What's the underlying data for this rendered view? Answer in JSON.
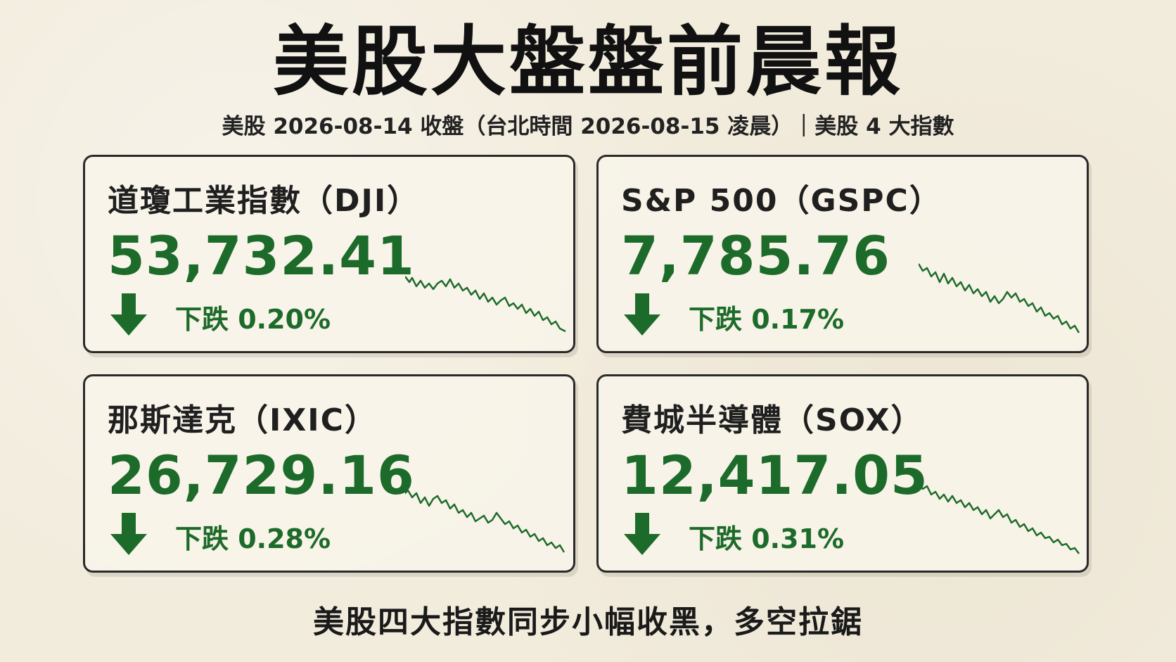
{
  "title": "美股大盤盤前晨報",
  "subtitle": "美股 2026-08-14 收盤（台北時間 2026-08-15 凌晨）｜美股 4 大指數",
  "colors": {
    "down": "#1d6b2a",
    "background": "#f2ecdd",
    "border": "#2a2a2a"
  },
  "cards": [
    {
      "name": "道瓊工業指數（DJI）",
      "value": "53,732.41",
      "change": "下跌 0.20%",
      "direction": "down",
      "arrow_icon": "down-arrow-icon"
    },
    {
      "name": "S&P 500（GSPC）",
      "value": "7,785.76",
      "change": "下跌 0.17%",
      "direction": "down",
      "arrow_icon": "down-arrow-icon"
    },
    {
      "name": "那斯達克（IXIC）",
      "value": "26,729.16",
      "change": "下跌 0.28%",
      "direction": "down",
      "arrow_icon": "down-arrow-icon"
    },
    {
      "name": "費城半導體（SOX）",
      "value": "12,417.05",
      "change": "下跌 0.31%",
      "direction": "down",
      "arrow_icon": "down-arrow-icon"
    }
  ],
  "footer": "美股四大指數同步小幅收黑，多空拉鋸"
}
